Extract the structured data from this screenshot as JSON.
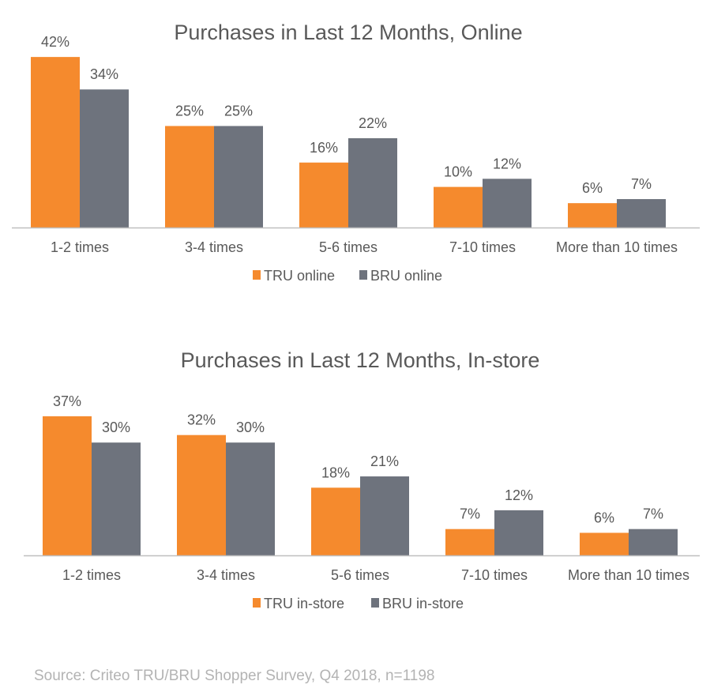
{
  "source": "Source: Criteo TRU/BRU Shopper Survey, Q4 2018, n=1198",
  "colors": {
    "tru": "#f58a2d",
    "bru": "#6e737d",
    "axis": "#bfbfbf",
    "text": "#595959",
    "title": "#595959"
  },
  "chart_data": [
    {
      "type": "bar",
      "title": "Purchases in Last 12 Months, Online",
      "categories": [
        "1-2 times",
        "3-4 times",
        "5-6 times",
        "7-10 times",
        "More than 10 times"
      ],
      "series": [
        {
          "name": "TRU online",
          "values": [
            42,
            25,
            16,
            10,
            6
          ],
          "labels": [
            "42%",
            "25%",
            "16%",
            "10%",
            "6%"
          ],
          "color": "#f58a2d"
        },
        {
          "name": "BRU online",
          "values": [
            34,
            25,
            22,
            12,
            7
          ],
          "labels": [
            "34%",
            "25%",
            "22%",
            "12%",
            "7%"
          ],
          "color": "#6e737d"
        }
      ],
      "unit": "%",
      "ylim": [
        0,
        42
      ],
      "legend": "bottom-center",
      "grid": false
    },
    {
      "type": "bar",
      "title": "Purchases in Last 12 Months, In-store",
      "categories": [
        "1-2 times",
        "3-4 times",
        "5-6 times",
        "7-10 times",
        "More than 10 times"
      ],
      "series": [
        {
          "name": "TRU in-store",
          "values": [
            37,
            32,
            18,
            7,
            6
          ],
          "labels": [
            "37%",
            "32%",
            "18%",
            "7%",
            "6%"
          ],
          "color": "#f58a2d"
        },
        {
          "name": "BRU in-store",
          "values": [
            30,
            30,
            21,
            12,
            7
          ],
          "labels": [
            "30%",
            "30%",
            "21%",
            "12%",
            "7%"
          ],
          "color": "#6e737d"
        }
      ],
      "unit": "%",
      "ylim": [
        0,
        37
      ],
      "legend": "bottom-center",
      "grid": false
    }
  ]
}
